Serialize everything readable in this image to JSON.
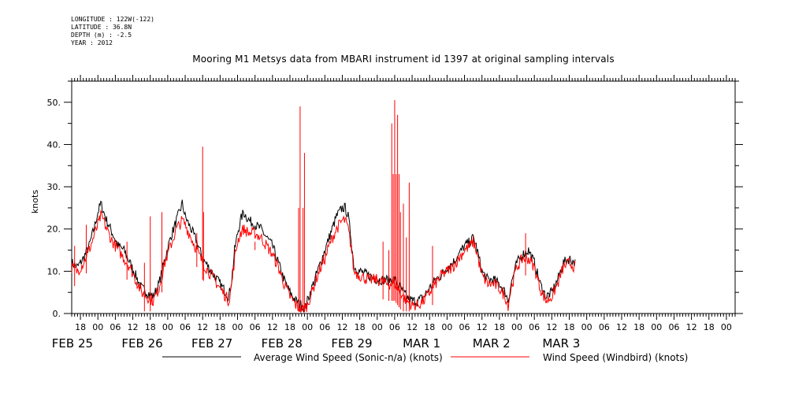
{
  "meta": {
    "longitude": "LONGITUDE : 122W(-122)",
    "latitude": "LATITUDE : 36.8N",
    "depth": "DEPTH (m) : -2.5",
    "year": "YEAR : 2012"
  },
  "chart_data": {
    "type": "line",
    "title": "Mooring M1 Metsys data from MBARI instrument id 1397 at original sampling intervals",
    "ylabel": "knots",
    "xlabel": "",
    "ylim": [
      0,
      55
    ],
    "xlim_hours": [
      -9,
      219
    ],
    "yticks": [
      0,
      10,
      20,
      30,
      40,
      50
    ],
    "ytick_labels": [
      "0.",
      "10.",
      "20.",
      "30.",
      "40.",
      "50."
    ],
    "hour_ticks": [
      {
        "h": -6,
        "label": "18"
      },
      {
        "h": 0,
        "label": "00"
      },
      {
        "h": 6,
        "label": "06"
      },
      {
        "h": 12,
        "label": "12"
      },
      {
        "h": 18,
        "label": "18"
      },
      {
        "h": 24,
        "label": "00"
      },
      {
        "h": 30,
        "label": "06"
      },
      {
        "h": 36,
        "label": "12"
      },
      {
        "h": 42,
        "label": "18"
      },
      {
        "h": 48,
        "label": "00"
      },
      {
        "h": 54,
        "label": "06"
      },
      {
        "h": 60,
        "label": "12"
      },
      {
        "h": 66,
        "label": "18"
      },
      {
        "h": 72,
        "label": "00"
      },
      {
        "h": 78,
        "label": "06"
      },
      {
        "h": 84,
        "label": "12"
      },
      {
        "h": 90,
        "label": "18"
      },
      {
        "h": 96,
        "label": "00"
      },
      {
        "h": 102,
        "label": "06"
      },
      {
        "h": 108,
        "label": "12"
      },
      {
        "h": 114,
        "label": "18"
      },
      {
        "h": 120,
        "label": "00"
      },
      {
        "h": 126,
        "label": "06"
      },
      {
        "h": 132,
        "label": "12"
      },
      {
        "h": 138,
        "label": "18"
      },
      {
        "h": 144,
        "label": "00"
      },
      {
        "h": 150,
        "label": "06"
      },
      {
        "h": 156,
        "label": "12"
      },
      {
        "h": 162,
        "label": "18"
      },
      {
        "h": 168,
        "label": "00"
      },
      {
        "h": 174,
        "label": "06"
      },
      {
        "h": 180,
        "label": "12"
      },
      {
        "h": 186,
        "label": "18"
      },
      {
        "h": 192,
        "label": "00"
      },
      {
        "h": 198,
        "label": "06"
      },
      {
        "h": 204,
        "label": "12"
      },
      {
        "h": 210,
        "label": "18"
      },
      {
        "h": 216,
        "label": "00"
      }
    ],
    "date_labels": [
      {
        "h": -12,
        "label": "FEB 25"
      },
      {
        "h": 12,
        "label": "FEB 26"
      },
      {
        "h": 36,
        "label": "FEB 27"
      },
      {
        "h": 60,
        "label": "FEB 28"
      },
      {
        "h": 84,
        "label": "FEB 29"
      },
      {
        "h": 108,
        "label": "MAR  1"
      },
      {
        "h": 132,
        "label": "MAR  2"
      },
      {
        "h": 156,
        "label": "MAR  3"
      }
    ],
    "series": [
      {
        "name": "Average Wind Speed (Sonic-n/a) (knots)",
        "color": "#000000",
        "points": [
          [
            -9,
            12
          ],
          [
            -7,
            11
          ],
          [
            -5,
            13
          ],
          [
            -3,
            16
          ],
          [
            -1,
            21
          ],
          [
            0,
            24
          ],
          [
            1,
            26
          ],
          [
            2,
            24
          ],
          [
            3,
            22
          ],
          [
            5,
            19
          ],
          [
            7,
            16
          ],
          [
            9,
            15
          ],
          [
            11,
            12
          ],
          [
            13,
            9
          ],
          [
            15,
            6
          ],
          [
            17,
            5
          ],
          [
            19,
            4
          ],
          [
            21,
            7
          ],
          [
            23,
            13
          ],
          [
            25,
            18
          ],
          [
            27,
            22
          ],
          [
            28,
            24
          ],
          [
            29,
            26
          ],
          [
            30,
            23
          ],
          [
            32,
            20
          ],
          [
            34,
            17
          ],
          [
            36,
            13
          ],
          [
            38,
            11
          ],
          [
            40,
            9
          ],
          [
            42,
            7
          ],
          [
            44,
            5
          ],
          [
            45,
            4
          ],
          [
            46,
            8
          ],
          [
            47,
            15
          ],
          [
            48,
            19
          ],
          [
            49,
            22
          ],
          [
            50,
            24
          ],
          [
            52,
            22
          ],
          [
            54,
            21
          ],
          [
            56,
            20
          ],
          [
            58,
            18
          ],
          [
            60,
            16
          ],
          [
            62,
            12
          ],
          [
            64,
            8
          ],
          [
            66,
            5
          ],
          [
            68,
            3
          ],
          [
            70,
            2
          ],
          [
            71,
            1
          ],
          [
            72,
            3
          ],
          [
            74,
            7
          ],
          [
            76,
            11
          ],
          [
            78,
            15
          ],
          [
            80,
            19
          ],
          [
            82,
            23
          ],
          [
            84,
            25
          ],
          [
            85,
            25
          ],
          [
            86,
            23
          ],
          [
            87,
            18
          ],
          [
            88,
            11
          ],
          [
            90,
            10
          ],
          [
            93,
            9
          ],
          [
            96,
            8
          ],
          [
            99,
            8
          ],
          [
            102,
            8
          ],
          [
            104,
            6
          ],
          [
            106,
            4
          ],
          [
            108,
            3
          ],
          [
            110,
            3
          ],
          [
            112,
            4
          ],
          [
            114,
            6
          ],
          [
            116,
            8
          ],
          [
            118,
            9
          ],
          [
            120,
            11
          ],
          [
            122,
            12
          ],
          [
            124,
            14
          ],
          [
            126,
            16
          ],
          [
            128,
            17
          ],
          [
            129,
            18
          ],
          [
            130,
            16
          ],
          [
            132,
            10
          ],
          [
            134,
            8
          ],
          [
            136,
            8
          ],
          [
            138,
            7
          ],
          [
            140,
            5
          ],
          [
            141,
            3
          ],
          [
            142,
            7
          ],
          [
            144,
            12
          ],
          [
            146,
            14
          ],
          [
            148,
            15
          ],
          [
            150,
            12
          ],
          [
            152,
            7
          ],
          [
            154,
            4
          ],
          [
            156,
            5
          ],
          [
            158,
            8
          ],
          [
            160,
            12
          ],
          [
            162,
            13
          ],
          [
            164,
            12
          ]
        ]
      },
      {
        "name": "Wind Speed (Windbird) (knots)",
        "color": "#ff0000",
        "points": [
          [
            -9,
            11
          ],
          [
            -7,
            10
          ],
          [
            -5,
            12
          ],
          [
            -3,
            15
          ],
          [
            -1,
            19
          ],
          [
            0,
            21
          ],
          [
            1,
            23
          ],
          [
            2,
            22
          ],
          [
            3,
            20
          ],
          [
            5,
            17
          ],
          [
            7,
            15
          ],
          [
            9,
            13
          ],
          [
            11,
            11
          ],
          [
            13,
            8
          ],
          [
            15,
            5
          ],
          [
            17,
            4
          ],
          [
            19,
            3
          ],
          [
            21,
            6
          ],
          [
            23,
            12
          ],
          [
            25,
            16
          ],
          [
            27,
            20
          ],
          [
            28,
            21
          ],
          [
            29,
            22
          ],
          [
            30,
            21
          ],
          [
            32,
            18
          ],
          [
            34,
            15
          ],
          [
            36,
            12
          ],
          [
            38,
            10
          ],
          [
            40,
            8
          ],
          [
            42,
            6
          ],
          [
            44,
            4
          ],
          [
            45,
            3
          ],
          [
            46,
            7
          ],
          [
            47,
            13
          ],
          [
            48,
            17
          ],
          [
            49,
            19
          ],
          [
            50,
            20
          ],
          [
            52,
            19
          ],
          [
            54,
            19
          ],
          [
            56,
            18
          ],
          [
            58,
            16
          ],
          [
            60,
            14
          ],
          [
            62,
            11
          ],
          [
            64,
            7
          ],
          [
            66,
            4
          ],
          [
            68,
            2
          ],
          [
            70,
            1
          ],
          [
            71,
            1
          ],
          [
            72,
            2
          ],
          [
            74,
            6
          ],
          [
            76,
            10
          ],
          [
            78,
            13
          ],
          [
            80,
            17
          ],
          [
            82,
            20
          ],
          [
            84,
            22
          ],
          [
            85,
            22
          ],
          [
            86,
            20
          ],
          [
            87,
            16
          ],
          [
            88,
            10
          ],
          [
            90,
            9
          ],
          [
            93,
            8
          ],
          [
            96,
            8
          ],
          [
            99,
            7
          ],
          [
            102,
            7
          ],
          [
            104,
            5
          ],
          [
            106,
            3
          ],
          [
            108,
            2
          ],
          [
            110,
            2
          ],
          [
            112,
            3
          ],
          [
            114,
            5
          ],
          [
            116,
            7
          ],
          [
            118,
            9
          ],
          [
            120,
            10
          ],
          [
            122,
            11
          ],
          [
            124,
            13
          ],
          [
            126,
            15
          ],
          [
            128,
            16
          ],
          [
            129,
            17
          ],
          [
            130,
            15
          ],
          [
            132,
            9
          ],
          [
            134,
            7
          ],
          [
            136,
            7
          ],
          [
            138,
            6
          ],
          [
            140,
            4
          ],
          [
            141,
            2
          ],
          [
            142,
            6
          ],
          [
            144,
            11
          ],
          [
            146,
            13
          ],
          [
            148,
            13
          ],
          [
            150,
            11
          ],
          [
            152,
            6
          ],
          [
            154,
            3
          ],
          [
            156,
            4
          ],
          [
            158,
            7
          ],
          [
            160,
            11
          ],
          [
            162,
            12
          ],
          [
            164,
            11
          ]
        ],
        "spikes": [
          [
            -8,
            16
          ],
          [
            -4,
            21
          ],
          [
            10,
            17
          ],
          [
            16,
            12
          ],
          [
            18,
            23
          ],
          [
            22,
            24
          ],
          [
            34,
            19
          ],
          [
            36,
            39.5
          ],
          [
            36.3,
            24
          ],
          [
            54,
            17
          ],
          [
            69,
            25
          ],
          [
            69.5,
            49
          ],
          [
            70.5,
            25
          ],
          [
            71,
            38
          ],
          [
            98,
            17
          ],
          [
            100,
            15
          ],
          [
            101,
            45
          ],
          [
            101.5,
            33
          ],
          [
            102,
            50.5
          ],
          [
            102.5,
            33
          ],
          [
            103,
            47
          ],
          [
            103.5,
            33
          ],
          [
            104,
            24
          ],
          [
            105,
            26
          ],
          [
            106,
            18
          ],
          [
            107,
            31
          ],
          [
            115,
            16
          ],
          [
            147,
            19
          ]
        ]
      }
    ],
    "legend": [
      {
        "label": "Average Wind Speed (Sonic-n/a) (knots)",
        "color": "#000000"
      },
      {
        "label": "Wind Speed (Windbird) (knots)",
        "color": "#ff0000"
      }
    ]
  }
}
